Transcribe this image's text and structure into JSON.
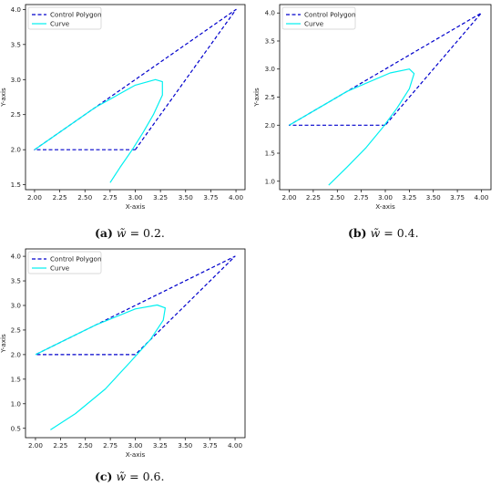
{
  "colors": {
    "control": "#0000cc",
    "curve": "#00f0f0",
    "axis": "#000000"
  },
  "chart_data": [
    {
      "type": "line",
      "panel_label": "(a)",
      "caption_text": "= 0.2.",
      "weight_symbol": "w̃",
      "xlabel": "X-axis",
      "ylabel": "Y-axis",
      "xlim": [
        1.91,
        4.09
      ],
      "ylim": [
        1.43,
        4.07
      ],
      "xticks": [
        "2.00",
        "2.25",
        "2.50",
        "2.75",
        "3.00",
        "3.25",
        "3.50",
        "3.75",
        "4.00"
      ],
      "yticks": [
        "1.5",
        "2.0",
        "2.5",
        "3.0",
        "3.5",
        "4.0"
      ],
      "legend": {
        "placement": "top-left",
        "entries": [
          "Control Polygon",
          "Curve"
        ]
      },
      "series": [
        {
          "name": "Control Polygon",
          "style": "dashed",
          "points": [
            [
              3.0,
              2.0
            ],
            [
              2.0,
              2.0
            ],
            [
              4.0,
              4.0
            ],
            [
              3.0,
              2.0
            ]
          ]
        },
        {
          "name": "Curve",
          "style": "solid",
          "points": [
            [
              2.75,
              1.53
            ],
            [
              2.85,
              1.75
            ],
            [
              2.97,
              2.0
            ],
            [
              3.08,
              2.25
            ],
            [
              3.18,
              2.5
            ],
            [
              3.27,
              2.78
            ],
            [
              3.27,
              2.97
            ],
            [
              3.2,
              3.0
            ],
            [
              3.0,
              2.92
            ],
            [
              2.6,
              2.6
            ],
            [
              2.3,
              2.3
            ],
            [
              2.0,
              2.0
            ]
          ]
        }
      ]
    },
    {
      "type": "line",
      "panel_label": "(b)",
      "caption_text": "= 0.4.",
      "weight_symbol": "w̃",
      "xlabel": "X-axis",
      "ylabel": "Y-axis",
      "xlim": [
        1.9,
        4.1
      ],
      "ylim": [
        0.85,
        4.15
      ],
      "xticks": [
        "2.00",
        "2.25",
        "2.50",
        "2.75",
        "3.00",
        "3.25",
        "3.50",
        "3.75",
        "4.00"
      ],
      "yticks": [
        "1.0",
        "1.5",
        "2.0",
        "2.5",
        "3.0",
        "3.5",
        "4.0"
      ],
      "legend": {
        "placement": "top-left",
        "entries": [
          "Control Polygon",
          "Curve"
        ]
      },
      "series": [
        {
          "name": "Control Polygon",
          "style": "dashed",
          "points": [
            [
              3.0,
              2.0
            ],
            [
              2.0,
              2.0
            ],
            [
              4.0,
              4.0
            ],
            [
              3.0,
              2.0
            ]
          ]
        },
        {
          "name": "Curve",
          "style": "solid",
          "points": [
            [
              2.41,
              0.93
            ],
            [
              2.6,
              1.25
            ],
            [
              2.8,
              1.6
            ],
            [
              2.97,
              1.95
            ],
            [
              3.12,
              2.3
            ],
            [
              3.25,
              2.65
            ],
            [
              3.3,
              2.92
            ],
            [
              3.25,
              3.0
            ],
            [
              3.05,
              2.93
            ],
            [
              2.6,
              2.6
            ],
            [
              2.3,
              2.3
            ],
            [
              2.0,
              2.0
            ]
          ]
        }
      ]
    },
    {
      "type": "line",
      "panel_label": "(c)",
      "caption_text": "= 0.6.",
      "weight_symbol": "w̃",
      "xlabel": "X-axis",
      "ylabel": "Y-axis",
      "xlim": [
        1.9,
        4.1
      ],
      "ylim": [
        0.31,
        4.15
      ],
      "xticks": [
        "2.00",
        "2.25",
        "2.50",
        "2.75",
        "3.00",
        "3.25",
        "3.50",
        "3.75",
        "4.00"
      ],
      "yticks": [
        "0.5",
        "1.0",
        "1.5",
        "2.0",
        "2.5",
        "3.0",
        "3.5",
        "4.0"
      ],
      "legend": {
        "placement": "top-left",
        "entries": [
          "Control Polygon",
          "Curve"
        ]
      },
      "series": [
        {
          "name": "Control Polygon",
          "style": "dashed",
          "points": [
            [
              3.0,
              2.0
            ],
            [
              2.0,
              2.0
            ],
            [
              4.0,
              4.0
            ],
            [
              3.0,
              2.0
            ]
          ]
        },
        {
          "name": "Curve",
          "style": "solid",
          "points": [
            [
              2.15,
              0.47
            ],
            [
              2.4,
              0.8
            ],
            [
              2.7,
              1.3
            ],
            [
              2.95,
              1.85
            ],
            [
              3.15,
              2.3
            ],
            [
              3.28,
              2.7
            ],
            [
              3.3,
              2.95
            ],
            [
              3.22,
              3.01
            ],
            [
              3.0,
              2.93
            ],
            [
              2.6,
              2.6
            ],
            [
              2.3,
              2.3
            ],
            [
              2.0,
              2.0
            ]
          ]
        }
      ]
    }
  ]
}
